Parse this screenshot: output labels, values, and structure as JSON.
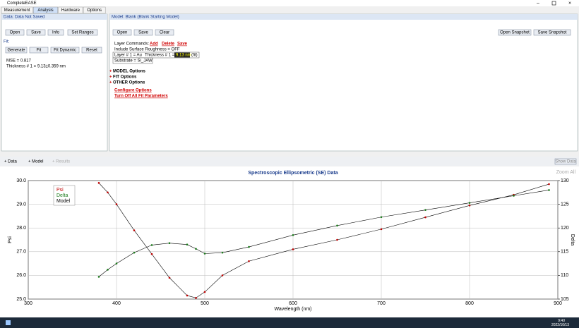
{
  "window": {
    "title": "CompleteEASE"
  },
  "tabs": [
    "Measurement",
    "Analysis",
    "Hardware",
    "Options"
  ],
  "data_panel": {
    "title": "Data: Data Not Saved",
    "buttons": [
      "Open",
      "Save",
      "Info",
      "Set Ranges"
    ],
    "fit_label": "Fit:",
    "fit_buttons": [
      "Generate",
      "Fit",
      "Fit Dynamic",
      "Reset"
    ],
    "results": [
      "MSE = 0.817",
      "Thickness # 1 = 9.13±0.359 nm"
    ]
  },
  "model_panel": {
    "title": "Model: Blank (Blank Starting Model)",
    "buttons": [
      "Open",
      "Save",
      "Clear"
    ],
    "snapshot_buttons": [
      "Open Snapshot",
      "Save Snapshot"
    ],
    "layer_commands_label": "Layer Commands:",
    "layer_commands": [
      "Add",
      "Delete",
      "Save"
    ],
    "roughness": "Include Surface Roughness = OFF",
    "layer": "Layer # 1 = Au",
    "thickness_label": "Thickness # 1 =",
    "thickness_value": "9.13 nm",
    "fit_flag": "(fit)",
    "substrate": "Substrate = Si_JAW",
    "options": [
      "MODEL Options",
      "FIT Options",
      "OTHER Options"
    ],
    "links": [
      "Configure Options",
      "Turn Off All Fit Parameters"
    ]
  },
  "graph_toolbar": {
    "tabs": [
      "+ Data",
      "+ Model",
      "+ Results"
    ],
    "show_data": "Show Data",
    "zoom": "Zoom All"
  },
  "chart_data": {
    "type": "line",
    "title": "Spectroscopic Ellipsometric (SE) Data",
    "x_label": "Wavelength (nm)",
    "y_label": "Psi",
    "y2_label": "Delta",
    "model_label": "Model",
    "x": [
      380,
      390,
      400,
      420,
      440,
      460,
      480,
      490,
      500,
      520,
      550,
      600,
      650,
      700,
      750,
      800,
      850,
      890
    ],
    "series": [
      {
        "name": "Psi",
        "color": "#c00000",
        "values": [
          29.9,
          29.5,
          29.0,
          27.9,
          26.9,
          25.9,
          25.15,
          25.05,
          25.3,
          26.0,
          26.6,
          27.1,
          27.5,
          27.95,
          28.45,
          28.95,
          29.4,
          29.85
        ]
      },
      {
        "name": "Delta",
        "color": "#1a7a1a",
        "axis": "y2",
        "values": [
          109.7,
          111.2,
          112.5,
          114.8,
          116.4,
          116.8,
          116.5,
          115.6,
          114.6,
          114.8,
          116.0,
          118.5,
          120.5,
          122.3,
          123.8,
          125.3,
          126.8,
          128.0
        ]
      }
    ],
    "xlim": [
      300,
      900
    ],
    "xticks": [
      300,
      400,
      500,
      600,
      700,
      800,
      900
    ],
    "ylim": [
      25,
      30
    ],
    "yticks": [
      {
        "value": 25,
        "label": "25.0"
      },
      {
        "value": 26,
        "label": "26.0"
      },
      {
        "value": 27,
        "label": "27.0"
      },
      {
        "value": 28,
        "label": "28.0"
      },
      {
        "value": 29,
        "label": "29.0"
      },
      {
        "value": 30,
        "label": "30.0"
      }
    ],
    "y2lim": [
      105,
      130
    ],
    "y2ticks": [
      105,
      110,
      115,
      120,
      125,
      130
    ],
    "grid": true
  },
  "taskbar": {
    "time": "9:40",
    "date": "2022/10/13"
  }
}
